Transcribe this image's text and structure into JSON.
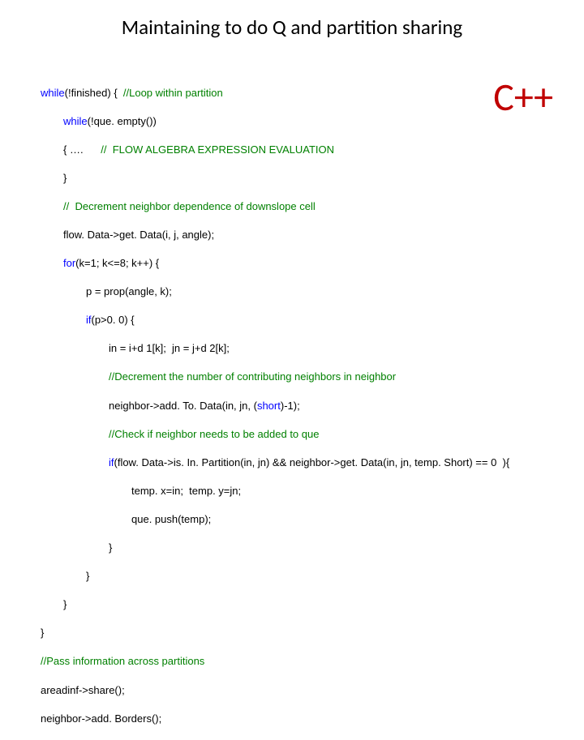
{
  "title": "Maintaining to do Q and partition sharing",
  "lang_label": "C++",
  "lang_label_color": "#c00000",
  "keyword_color": "#0000ff",
  "comment_color": "#008000",
  "text_color": "#000000",
  "background_color": "#ffffff",
  "title_fontsize": 25,
  "lang_fontsize": 48,
  "code_fontsize": 13,
  "code": {
    "l0_kw": "while",
    "l0_a": "(!finished) {  ",
    "l0_cm": "//Loop within partition",
    "l1_kw": "while",
    "l1_a": "(!que. empty())",
    "l2_a": "{ ….      ",
    "l2_cm": "//  FLOW ALGEBRA EXPRESSION EVALUATION",
    "l3_a": "}",
    "l4_cm": "//  Decrement neighbor dependence of downslope cell",
    "l5_a": "flow. Data->get. Data(i, j, angle);",
    "l6_kw": "for",
    "l6_a": "(k=1; k<=8; k++) {",
    "l7_a": "p = prop(angle, k);",
    "l8_kw": "if",
    "l8_a": "(p>0. 0) {",
    "l9_a": "in = i+d 1[k];  jn = j+d 2[k];",
    "l10_cm": "//Decrement the number of contributing neighbors in neighbor",
    "l11_a": "neighbor->add. To. Data(in, jn, (",
    "l11_kw": "short",
    "l11_b": ")-1);",
    "l12_cm": "//Check if neighbor needs to be added to que",
    "l13_kw": "if",
    "l13_a": "(flow. Data->is. In. Partition(in, jn) && neighbor->get. Data(in, jn, temp. Short) == 0  ){",
    "l14_a": "temp. x=in;  temp. y=jn;",
    "l15_a": "que. push(temp);",
    "l16_a": "}",
    "l17_a": "}",
    "l18_a": "}",
    "l19_a": "}",
    "l20_cm": "//Pass information across partitions",
    "l21_a": "areadinf->share();",
    "l22_a": "neighbor->add. Borders();"
  }
}
